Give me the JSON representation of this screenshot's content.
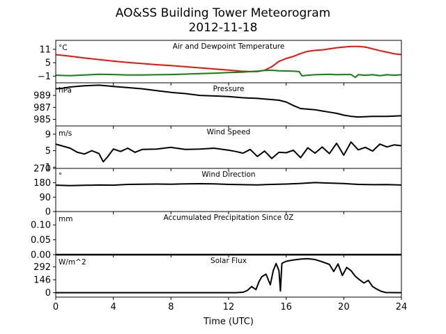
{
  "figure": {
    "title_line1": "AO&SS Building Tower Meteorogram",
    "title_line2": "2012-11-18"
  },
  "chart_data": [
    {
      "type": "line",
      "title": "Air and Dewpoint Temperature",
      "unit": "°C",
      "ylim": [
        -4,
        15
      ],
      "yticks": [
        -1,
        5,
        11
      ],
      "ytick_labels": [
        "−1",
        "5",
        "11"
      ],
      "series": [
        {
          "color": "#e8120c",
          "x": [
            0,
            1,
            2,
            3,
            4,
            5,
            6,
            7,
            8,
            9,
            10,
            11,
            12,
            12.8,
            13.5,
            14,
            14.5,
            15,
            15.5,
            16,
            16.5,
            17,
            17.5,
            18,
            18.5,
            19,
            19.5,
            20,
            20.5,
            21,
            21.5,
            22,
            22.5,
            23,
            23.5,
            24
          ],
          "y": [
            8.6,
            7.9,
            7.1,
            6.4,
            5.7,
            5.1,
            4.6,
            4.1,
            3.7,
            3.2,
            2.7,
            2.2,
            1.7,
            1.2,
            1.0,
            1.0,
            1.6,
            3.2,
            5.6,
            6.9,
            7.8,
            9.1,
            10.1,
            10.5,
            10.7,
            11.2,
            11.7,
            12.0,
            12.3,
            12.3,
            12.0,
            11.2,
            10.4,
            9.7,
            9.0,
            8.6
          ]
        },
        {
          "color": "#0f7f0f",
          "x": [
            0,
            1,
            2,
            3,
            4,
            5,
            6,
            7,
            8,
            9,
            10,
            11,
            12,
            13,
            13.5,
            14,
            14.5,
            15,
            15.5,
            16,
            16.5,
            16.9,
            17.1,
            17.5,
            18,
            18.5,
            19,
            19.5,
            20,
            20.5,
            20.8,
            21,
            21.5,
            22,
            22.5,
            23,
            23.5,
            24
          ],
          "y": [
            -0.6,
            -0.8,
            -0.5,
            -0.2,
            -0.3,
            -0.5,
            -0.5,
            -0.4,
            -0.3,
            -0.1,
            0.1,
            0.3,
            0.6,
            0.8,
            1.0,
            1.2,
            1.5,
            1.6,
            1.4,
            1.3,
            1.2,
            1.0,
            -0.9,
            -0.6,
            -0.4,
            -0.3,
            -0.2,
            -0.4,
            -0.3,
            -0.3,
            -1.6,
            -0.4,
            -0.6,
            -0.4,
            -0.8,
            -0.4,
            -0.6,
            -0.4
          ]
        }
      ]
    },
    {
      "type": "line",
      "title": "Pressure",
      "unit": "hPa",
      "ylim": [
        983.9,
        991.1
      ],
      "yticks": [
        985,
        987,
        989
      ],
      "ytick_labels": [
        "985",
        "987",
        "989"
      ],
      "series": [
        {
          "color": "#000000",
          "x": [
            0,
            0.5,
            1,
            2,
            3,
            3.5,
            4,
            5,
            6,
            7,
            8,
            9,
            10,
            11,
            12,
            13,
            14,
            15,
            15.5,
            16,
            16.5,
            17,
            17.5,
            18,
            18.5,
            19,
            19.5,
            20,
            20.5,
            21,
            22,
            23,
            24
          ],
          "y": [
            990.1,
            990.2,
            990.4,
            990.6,
            990.7,
            990.6,
            990.5,
            990.3,
            990.1,
            989.8,
            989.5,
            989.3,
            989.0,
            988.9,
            988.8,
            988.6,
            988.5,
            988.3,
            988.2,
            987.9,
            987.3,
            986.8,
            986.7,
            986.6,
            986.4,
            986.2,
            986.0,
            985.7,
            985.5,
            985.4,
            985.5,
            985.5,
            985.6
          ]
        }
      ]
    },
    {
      "type": "line",
      "title": "Wind Speed",
      "unit": "m/s",
      "ylim": [
        0.7,
        11
      ],
      "yticks": [
        1,
        5,
        9
      ],
      "ytick_labels": [
        "1",
        "5",
        "9"
      ],
      "series": [
        {
          "color": "#000000",
          "x": [
            0,
            0.5,
            1,
            1.5,
            2,
            2.5,
            3,
            3.3,
            3.6,
            4,
            4.5,
            5,
            5.5,
            6,
            7,
            8,
            9,
            10,
            11,
            12,
            12.5,
            13,
            13.5,
            14,
            14.5,
            15,
            15.5,
            16,
            16.5,
            17,
            17.5,
            18,
            18.5,
            19,
            19.5,
            20,
            20.5,
            21,
            21.5,
            22,
            22.5,
            23,
            23.5,
            24
          ],
          "y": [
            6.6,
            6.1,
            5.6,
            4.6,
            4.2,
            5.0,
            4.3,
            2.3,
            3.5,
            5.4,
            4.8,
            5.6,
            4.6,
            5.3,
            5.4,
            5.8,
            5.3,
            5.4,
            5.6,
            5.1,
            4.8,
            4.4,
            5.3,
            3.6,
            4.9,
            3.1,
            4.6,
            4.5,
            5.1,
            3.3,
            5.7,
            4.4,
            5.9,
            4.3,
            6.8,
            3.9,
            7.1,
            5.2,
            5.8,
            4.9,
            6.6,
            5.9,
            6.4,
            6.2
          ]
        }
      ]
    },
    {
      "type": "line",
      "title": "Wind Direction",
      "unit": "°",
      "ylim": [
        0,
        270
      ],
      "yticks": [
        0,
        90,
        180,
        270
      ],
      "ytick_labels": [
        "0",
        "90",
        "180",
        "270"
      ],
      "series": [
        {
          "color": "#000000",
          "x": [
            0,
            1,
            2,
            3,
            4,
            5,
            6,
            7,
            8,
            9,
            10,
            11,
            12,
            13,
            14,
            15,
            16,
            17,
            18,
            19,
            20,
            21,
            22,
            23,
            24
          ],
          "y": [
            165,
            162,
            164,
            166,
            165,
            170,
            171,
            172,
            171,
            173,
            174,
            173,
            170,
            168,
            167,
            170,
            172,
            176,
            181,
            178,
            175,
            170,
            168,
            169,
            166
          ]
        }
      ]
    },
    {
      "type": "line",
      "title": "Accumulated Precipitation Since 0Z",
      "unit": "mm",
      "ylim": [
        0,
        0.145
      ],
      "yticks": [
        0.0,
        0.05,
        0.1
      ],
      "ytick_labels": [
        "0.00",
        "0.05",
        "0.10"
      ],
      "series": [
        {
          "color": "#000000",
          "x": [
            0,
            24
          ],
          "y": [
            0,
            0
          ]
        }
      ]
    },
    {
      "type": "line",
      "title": "Solar Flux",
      "unit": "W/m^2",
      "ylim": [
        -50,
        430
      ],
      "yticks": [
        0,
        146,
        292
      ],
      "ytick_labels": [
        "0",
        "146",
        "292"
      ],
      "series": [
        {
          "color": "#000000",
          "x": [
            0,
            12.5,
            13.0,
            13.3,
            13.6,
            13.9,
            14.1,
            14.3,
            14.6,
            14.9,
            15.1,
            15.3,
            15.5,
            15.6,
            15.7,
            15.8,
            16.0,
            16.5,
            17.0,
            17.5,
            18.0,
            18.5,
            19.0,
            19.3,
            19.6,
            19.9,
            20.2,
            20.5,
            20.8,
            21.1,
            21.4,
            21.7,
            22.0,
            22.3,
            22.6,
            22.9,
            24
          ],
          "y": [
            0,
            0,
            5,
            25,
            70,
            35,
            120,
            180,
            210,
            90,
            250,
            330,
            250,
            20,
            330,
            340,
            355,
            370,
            380,
            385,
            375,
            350,
            320,
            240,
            325,
            195,
            285,
            250,
            185,
            145,
            110,
            140,
            70,
            40,
            15,
            2,
            0
          ]
        }
      ]
    },
    {
      "type": "axis",
      "xlabel": "Time (UTC)",
      "xlim": [
        0,
        24
      ],
      "xticks": [
        0,
        4,
        8,
        12,
        16,
        20,
        24
      ],
      "xtick_labels": [
        "0",
        "4",
        "8",
        "12",
        "16",
        "20",
        "24"
      ]
    }
  ]
}
